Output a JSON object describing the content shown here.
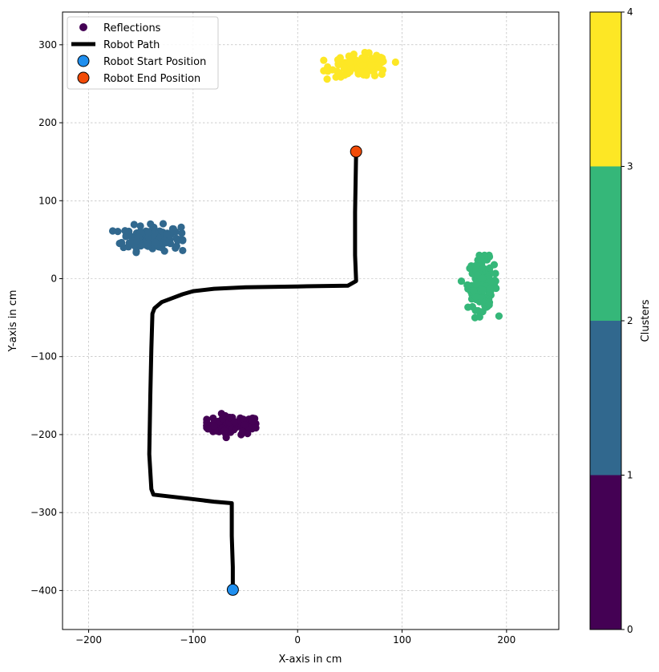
{
  "chart_data": {
    "type": "scatter",
    "xlabel": "X-axis in cm",
    "ylabel": "Y-axis in cm",
    "xlim": [
      -225,
      250
    ],
    "ylim": [
      -450,
      342
    ],
    "x_ticks": [
      -200,
      -100,
      0,
      100,
      200
    ],
    "y_ticks": [
      -400,
      -300,
      -200,
      -100,
      0,
      100,
      200,
      300
    ],
    "grid": true,
    "legend_position": "top-left",
    "legend": [
      {
        "key": "reflections",
        "label": "Reflections"
      },
      {
        "key": "path",
        "label": "Robot Path"
      },
      {
        "key": "start",
        "label": "Robot Start Position"
      },
      {
        "key": "end",
        "label": "Robot End Position"
      }
    ],
    "clusters": [
      {
        "id": 0,
        "color": "#440154",
        "center": [
          -64,
          -188
        ],
        "spread": [
          14,
          6
        ],
        "n": 90,
        "xr": [
          -87,
          -40
        ],
        "yr": [
          -205,
          -168
        ]
      },
      {
        "id": 1,
        "color": "#31688e",
        "center": [
          -140,
          52
        ],
        "spread": [
          14,
          8
        ],
        "n": 150,
        "xr": [
          -177,
          -110
        ],
        "yr": [
          27,
          74
        ]
      },
      {
        "id": 2,
        "color": "#35b779",
        "center": [
          177,
          -7
        ],
        "spread": [
          7,
          16
        ],
        "n": 150,
        "xr": [
          155,
          198
        ],
        "yr": [
          -50,
          30
        ]
      },
      {
        "id": 3,
        "color": "#fde725",
        "center": [
          60,
          273
        ],
        "spread": [
          14,
          7
        ],
        "n": 120,
        "xr": [
          25,
          95
        ],
        "yr": [
          256,
          292
        ]
      }
    ],
    "robot_path": [
      [
        -62,
        -399
      ],
      [
        -62,
        -370
      ],
      [
        -63,
        -330
      ],
      [
        -63,
        -288
      ],
      [
        -80,
        -286
      ],
      [
        -105,
        -282
      ],
      [
        -138,
        -277
      ],
      [
        -140,
        -270
      ],
      [
        -142,
        -225
      ],
      [
        -141,
        -150
      ],
      [
        -140,
        -90
      ],
      [
        -139,
        -45
      ],
      [
        -137,
        -38
      ],
      [
        -130,
        -30
      ],
      [
        -120,
        -25
      ],
      [
        -110,
        -20
      ],
      [
        -100,
        -16
      ],
      [
        -80,
        -13
      ],
      [
        -50,
        -11
      ],
      [
        0,
        -10
      ],
      [
        48,
        -9
      ],
      [
        56,
        -3
      ],
      [
        55,
        30
      ],
      [
        55,
        85
      ],
      [
        56,
        162
      ]
    ],
    "path_color": "#000000",
    "start_position": {
      "x": -62,
      "y": -399,
      "color": "#1f8fef"
    },
    "end_position": {
      "x": 56,
      "y": 163,
      "color": "#f24b07"
    },
    "colorbar": {
      "label": "Clusters",
      "ticks": [
        0,
        1,
        2,
        3,
        4
      ],
      "colors": [
        "#440154",
        "#31688e",
        "#35b779",
        "#fde725"
      ]
    }
  }
}
